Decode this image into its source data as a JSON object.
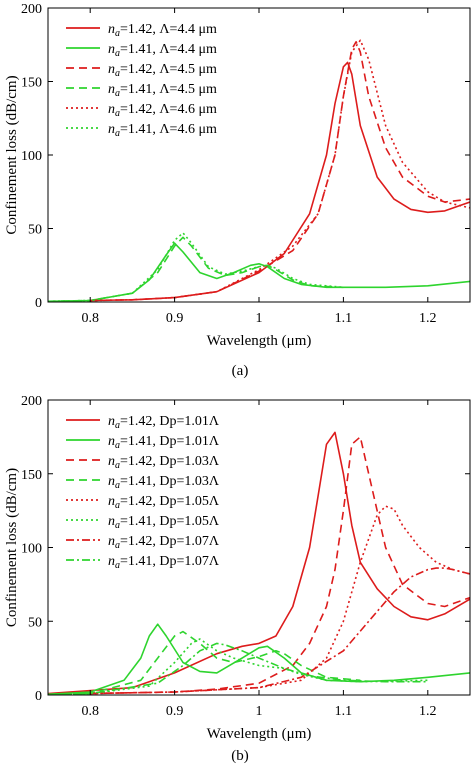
{
  "chart_data": [
    {
      "type": "line",
      "caption": "(a)",
      "xlabel": "Wavelength (μm)",
      "ylabel": "Confinement loss (dB/cm)",
      "xlim": [
        0.75,
        1.25
      ],
      "ylim": [
        0,
        200
      ],
      "xticks": [
        "0.8",
        "0.9",
        "1",
        "1.1",
        "1.2"
      ],
      "yticks": [
        "0",
        "50",
        "100",
        "150",
        "200"
      ],
      "grid": false,
      "legend_position": "top-left",
      "series": [
        {
          "name_sub": "a",
          "name_rest": "=1.42, Λ=4.4 μm",
          "color": "#dd1c1c",
          "dash": "solid",
          "x": [
            0.8,
            0.85,
            0.9,
            0.95,
            1.0,
            1.03,
            1.06,
            1.08,
            1.09,
            1.1,
            1.105,
            1.11,
            1.12,
            1.14,
            1.16,
            1.18,
            1.2,
            1.22,
            1.25
          ],
          "y": [
            1,
            1.5,
            3,
            7,
            20,
            33,
            60,
            100,
            135,
            160,
            163,
            155,
            120,
            85,
            70,
            63,
            61,
            62,
            68
          ]
        },
        {
          "name_sub": "a",
          "name_rest": "=1.41, Λ=4.4 μm",
          "color": "#2ed42e",
          "dash": "solid",
          "x": [
            0.75,
            0.8,
            0.85,
            0.87,
            0.89,
            0.9,
            0.91,
            0.93,
            0.95,
            0.97,
            0.99,
            1.0,
            1.01,
            1.03,
            1.05,
            1.08,
            1.1,
            1.15,
            1.2,
            1.25
          ],
          "y": [
            0.5,
            1,
            6,
            15,
            32,
            40,
            34,
            20,
            16,
            20,
            25,
            26,
            24,
            16,
            12,
            10,
            10,
            10,
            11,
            14
          ]
        },
        {
          "name_sub": "a",
          "name_rest": "=1.42, Λ=4.5 μm",
          "color": "#dd1c1c",
          "dash": "8,5",
          "x": [
            0.8,
            0.85,
            0.9,
            0.95,
            1.0,
            1.04,
            1.07,
            1.09,
            1.1,
            1.11,
            1.115,
            1.12,
            1.13,
            1.15,
            1.17,
            1.2,
            1.22,
            1.25
          ],
          "y": [
            1,
            1.5,
            3,
            7,
            21,
            35,
            60,
            100,
            140,
            172,
            177,
            170,
            140,
            105,
            85,
            72,
            68,
            70
          ]
        },
        {
          "name_sub": "a",
          "name_rest": "=1.41, Λ=4.5 μm",
          "color": "#2ed42e",
          "dash": "8,5",
          "x": [
            0.75,
            0.8,
            0.85,
            0.88,
            0.9,
            0.91,
            0.92,
            0.94,
            0.96,
            0.98,
            1.0,
            1.01,
            1.02,
            1.04,
            1.06,
            1.1
          ],
          "y": [
            0.5,
            1,
            6,
            20,
            38,
            44,
            38,
            23,
            18,
            20,
            24,
            25,
            22,
            15,
            11,
            10
          ]
        },
        {
          "name_sub": "a",
          "name_rest": "=1.42, Λ=4.6 μm",
          "color": "#dd1c1c",
          "dash": "2,3",
          "x": [
            0.8,
            0.85,
            0.9,
            0.95,
            1.0,
            1.04,
            1.07,
            1.09,
            1.1,
            1.11,
            1.12,
            1.13,
            1.15,
            1.17,
            1.2,
            1.22,
            1.25
          ],
          "y": [
            1,
            1.5,
            3,
            7,
            22,
            38,
            60,
            100,
            140,
            170,
            178,
            165,
            120,
            95,
            75,
            68,
            64
          ]
        },
        {
          "name_sub": "a",
          "name_rest": "=1.41, Λ=4.6 μm",
          "color": "#2ed42e",
          "dash": "2,3",
          "x": [
            0.75,
            0.8,
            0.85,
            0.88,
            0.9,
            0.91,
            0.92,
            0.94,
            0.96,
            0.98,
            1.0,
            1.01,
            1.02,
            1.04,
            1.06,
            1.1
          ],
          "y": [
            0.5,
            1,
            6,
            22,
            42,
            47,
            40,
            24,
            19,
            21,
            24,
            25,
            23,
            16,
            12,
            10
          ]
        }
      ]
    },
    {
      "type": "line",
      "caption": "(b)",
      "xlabel": "Wavelength (μm)",
      "ylabel": "Confinement loss (dB/cm)",
      "xlim": [
        0.75,
        1.25
      ],
      "ylim": [
        0,
        200
      ],
      "xticks": [
        "0.8",
        "0.9",
        "1",
        "1.1",
        "1.2"
      ],
      "yticks": [
        "0",
        "50",
        "100",
        "150",
        "200"
      ],
      "grid": false,
      "legend_position": "top-left",
      "series": [
        {
          "name_sub": "a",
          "name_rest": "=1.42, Dp=1.01Λ",
          "color": "#dd1c1c",
          "dash": "solid",
          "x": [
            0.75,
            0.85,
            0.9,
            0.95,
            0.98,
            1.0,
            1.02,
            1.04,
            1.06,
            1.07,
            1.08,
            1.09,
            1.1,
            1.11,
            1.12,
            1.14,
            1.16,
            1.18,
            1.2,
            1.22,
            1.25
          ],
          "y": [
            1,
            5,
            15,
            28,
            33,
            35,
            40,
            60,
            100,
            135,
            170,
            178,
            150,
            115,
            90,
            72,
            60,
            53,
            51,
            55,
            65
          ]
        },
        {
          "name_sub": "a",
          "name_rest": "=1.41, Dp=1.01Λ",
          "color": "#2ed42e",
          "dash": "solid",
          "x": [
            0.75,
            0.8,
            0.84,
            0.86,
            0.87,
            0.88,
            0.89,
            0.91,
            0.93,
            0.95,
            0.98,
            1.0,
            1.01,
            1.03,
            1.05,
            1.08,
            1.12,
            1.16,
            1.2,
            1.25
          ],
          "y": [
            0.5,
            2,
            10,
            25,
            40,
            48,
            40,
            22,
            16,
            15,
            25,
            32,
            33,
            25,
            15,
            10,
            9,
            10,
            12,
            15
          ]
        },
        {
          "name_sub": "a",
          "name_rest": "=1.42, Dp=1.03Λ",
          "color": "#dd1c1c",
          "dash": "8,5",
          "x": [
            0.8,
            0.9,
            0.95,
            1.0,
            1.04,
            1.06,
            1.08,
            1.09,
            1.1,
            1.11,
            1.12,
            1.13,
            1.15,
            1.17,
            1.2,
            1.22,
            1.25
          ],
          "y": [
            1,
            2,
            4,
            8,
            20,
            35,
            60,
            85,
            125,
            170,
            175,
            150,
            100,
            75,
            62,
            60,
            66
          ]
        },
        {
          "name_sub": "a",
          "name_rest": "=1.41, Dp=1.03Λ",
          "color": "#2ed42e",
          "dash": "8,5",
          "x": [
            0.75,
            0.8,
            0.86,
            0.88,
            0.9,
            0.91,
            0.93,
            0.95,
            0.97,
            1.0,
            1.02,
            1.03,
            1.05,
            1.08,
            1.12
          ],
          "y": [
            0.5,
            1,
            10,
            25,
            40,
            43,
            35,
            25,
            22,
            26,
            30,
            28,
            20,
            12,
            10
          ]
        },
        {
          "name_sub": "a",
          "name_rest": "=1.42, Dp=1.05Λ",
          "color": "#dd1c1c",
          "dash": "2,3",
          "x": [
            0.8,
            0.9,
            1.0,
            1.05,
            1.08,
            1.1,
            1.12,
            1.14,
            1.15,
            1.16,
            1.17,
            1.19,
            1.21,
            1.23,
            1.25
          ],
          "y": [
            1,
            2,
            5,
            10,
            25,
            50,
            90,
            122,
            128,
            126,
            115,
            100,
            90,
            85,
            82
          ]
        },
        {
          "name_sub": "a",
          "name_rest": "=1.41, Dp=1.05Λ",
          "color": "#2ed42e",
          "dash": "2,3",
          "x": [
            0.75,
            0.8,
            0.87,
            0.9,
            0.92,
            0.93,
            0.95,
            0.97,
            1.0,
            1.03,
            1.05,
            1.08,
            1.12,
            1.2
          ],
          "y": [
            0.5,
            1,
            6,
            22,
            35,
            38,
            30,
            25,
            20,
            18,
            14,
            10,
            9,
            10
          ]
        },
        {
          "name_sub": "a",
          "name_rest": "=1.42, Dp=1.07Λ",
          "color": "#dd1c1c",
          "dash": "8,3,2,3",
          "x": [
            0.8,
            0.9,
            1.0,
            1.05,
            1.1,
            1.13,
            1.16,
            1.18,
            1.2,
            1.21,
            1.22,
            1.23,
            1.25
          ],
          "y": [
            1,
            2,
            5,
            12,
            30,
            50,
            70,
            80,
            85,
            86,
            86,
            85,
            82
          ]
        },
        {
          "name_sub": "a",
          "name_rest": "=1.41, Dp=1.07Λ",
          "color": "#2ed42e",
          "dash": "8,3,2,3",
          "x": [
            0.75,
            0.8,
            0.88,
            0.91,
            0.93,
            0.95,
            0.96,
            0.98,
            1.0,
            1.03,
            1.06,
            1.1,
            1.15,
            1.2
          ],
          "y": [
            0.5,
            1,
            8,
            20,
            30,
            35,
            34,
            30,
            25,
            18,
            13,
            10,
            9,
            9
          ]
        }
      ]
    }
  ]
}
